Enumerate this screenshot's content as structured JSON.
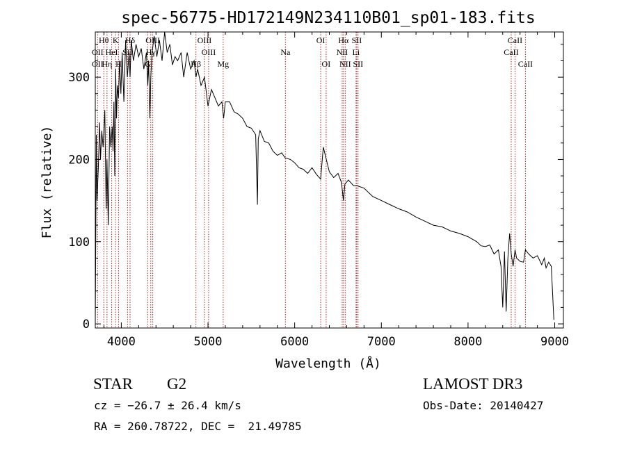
{
  "chart_data": {
    "type": "line",
    "title": "spec-56775-HD172149N234110B01_sp01-183.fits",
    "xlabel": "Wavelength (Å)",
    "ylabel": "Flux (relative)",
    "xlim": [
      3700,
      9100
    ],
    "ylim": [
      -5,
      355
    ],
    "xticks": [
      4000,
      5000,
      6000,
      7000,
      8000,
      9000
    ],
    "yticks": [
      0,
      100,
      200,
      300
    ],
    "xtick_labels": [
      "4000",
      "5000",
      "6000",
      "7000",
      "8000",
      "9000"
    ],
    "ytick_labels": [
      "0",
      "100",
      "200",
      "300"
    ],
    "series": [
      {
        "name": "flux",
        "x": [
          3700,
          3705,
          3712,
          3720,
          3735,
          3750,
          3760,
          3775,
          3790,
          3810,
          3825,
          3835,
          3850,
          3865,
          3880,
          3895,
          3905,
          3915,
          3925,
          3935,
          3945,
          3955,
          3968,
          3980,
          3995,
          4010,
          4030,
          4050,
          4070,
          4090,
          4101,
          4115,
          4140,
          4170,
          4200,
          4230,
          4260,
          4290,
          4305,
          4315,
          4330,
          4340,
          4355,
          4380,
          4410,
          4440,
          4470,
          4500,
          4530,
          4560,
          4590,
          4620,
          4650,
          4690,
          4720,
          4760,
          4800,
          4840,
          4861,
          4880,
          4920,
          4960,
          5000,
          5040,
          5080,
          5120,
          5160,
          5180,
          5200,
          5250,
          5300,
          5350,
          5400,
          5450,
          5500,
          5550,
          5570,
          5580,
          5600,
          5650,
          5700,
          5750,
          5800,
          5850,
          5890,
          5950,
          6000,
          6050,
          6100,
          6150,
          6200,
          6250,
          6300,
          6330,
          6400,
          6450,
          6500,
          6540,
          6563,
          6580,
          6620,
          6680,
          6720,
          6800,
          6900,
          7000,
          7100,
          7200,
          7300,
          7400,
          7500,
          7600,
          7700,
          7800,
          7900,
          8000,
          8100,
          8150,
          8200,
          8250,
          8300,
          8350,
          8380,
          8400,
          8420,
          8440,
          8460,
          8480,
          8498,
          8520,
          8542,
          8560,
          8600,
          8640,
          8662,
          8700,
          8750,
          8800,
          8850,
          8880,
          8900,
          8930,
          8960,
          8990
        ],
        "values": [
          0,
          90,
          230,
          150,
          190,
          245,
          200,
          235,
          215,
          260,
          140,
          200,
          120,
          240,
          215,
          240,
          210,
          270,
          180,
          310,
          250,
          290,
          275,
          320,
          280,
          330,
          270,
          345,
          300,
          330,
          300,
          345,
          320,
          340,
          325,
          335,
          310,
          330,
          290,
          320,
          250,
          300,
          330,
          350,
          325,
          345,
          320,
          355,
          330,
          340,
          315,
          325,
          320,
          330,
          300,
          330,
          310,
          320,
          300,
          310,
          290,
          300,
          265,
          285,
          275,
          265,
          270,
          250,
          270,
          270,
          258,
          255,
          250,
          240,
          238,
          230,
          145,
          225,
          235,
          222,
          220,
          210,
          205,
          208,
          202,
          200,
          196,
          190,
          188,
          183,
          190,
          182,
          176,
          215,
          185,
          178,
          183,
          172,
          150,
          170,
          175,
          168,
          168,
          165,
          155,
          150,
          145,
          140,
          136,
          130,
          125,
          120,
          118,
          113,
          110,
          106,
          100,
          95,
          94,
          96,
          85,
          90,
          70,
          20,
          88,
          15,
          80,
          110,
          85,
          70,
          90,
          80,
          76,
          75,
          90,
          85,
          80,
          83,
          72,
          80,
          68,
          75,
          70,
          5
        ]
      }
    ],
    "spectral_lines": [
      {
        "label": "Hθ",
        "x": 3798,
        "row": 1
      },
      {
        "label": "OII",
        "x": 3727,
        "row": 2
      },
      {
        "label": "OII",
        "x": 3727,
        "row": 3
      },
      {
        "label": "K",
        "x": 3934,
        "row": 1
      },
      {
        "label": "HeI",
        "x": 3889,
        "row": 2
      },
      {
        "label": "Hη",
        "x": 3835,
        "row": 3
      },
      {
        "label": "Hδ",
        "x": 4101,
        "row": 1
      },
      {
        "label": "SII",
        "x": 4072,
        "row": 2
      },
      {
        "label": "H",
        "x": 3968,
        "row": 3
      },
      {
        "label": "OIII",
        "x": 4363,
        "row": 1
      },
      {
        "label": "Hγ",
        "x": 4340,
        "row": 2
      },
      {
        "label": "G",
        "x": 4305,
        "row": 3
      },
      {
        "label": "OIII",
        "x": 4959,
        "row": 1
      },
      {
        "label": "OIII",
        "x": 5007,
        "row": 2
      },
      {
        "label": "Hβ",
        "x": 4861,
        "row": 3
      },
      {
        "label": "Mg",
        "x": 5175,
        "row": 3
      },
      {
        "label": "Na",
        "x": 5893,
        "row": 2
      },
      {
        "label": "OI",
        "x": 6300,
        "row": 1
      },
      {
        "label": "OI",
        "x": 6363,
        "row": 3
      },
      {
        "label": "Hα",
        "x": 6563,
        "row": 1
      },
      {
        "label": "SII",
        "x": 6716,
        "row": 1
      },
      {
        "label": "NII",
        "x": 6548,
        "row": 2
      },
      {
        "label": "Li",
        "x": 6708,
        "row": 2
      },
      {
        "label": "NII",
        "x": 6583,
        "row": 3
      },
      {
        "label": "SII",
        "x": 6731,
        "row": 3
      },
      {
        "label": "CaII",
        "x": 8542,
        "row": 1
      },
      {
        "label": "CaII",
        "x": 8498,
        "row": 2
      },
      {
        "label": "CaII",
        "x": 8662,
        "row": 3
      }
    ],
    "line_marker_xs": [
      3727,
      3798,
      3835,
      3889,
      3934,
      3968,
      4072,
      4101,
      4305,
      4340,
      4363,
      4861,
      4959,
      5007,
      5175,
      5893,
      6300,
      6363,
      6548,
      6563,
      6583,
      6708,
      6716,
      6731,
      8498,
      8542,
      8662
    ],
    "colors": {
      "spectrum": "#000000",
      "line_marker": "#b22222",
      "axis": "#000000"
    }
  },
  "info": {
    "object_class": "STAR",
    "subclass": "G2",
    "survey": "LAMOST DR3",
    "cz": "cz = −26.7 ± 26.4 km/s",
    "obs_date": "Obs-Date: 20140427",
    "coords": "RA = 260.78722, DEC =  21.49785"
  }
}
